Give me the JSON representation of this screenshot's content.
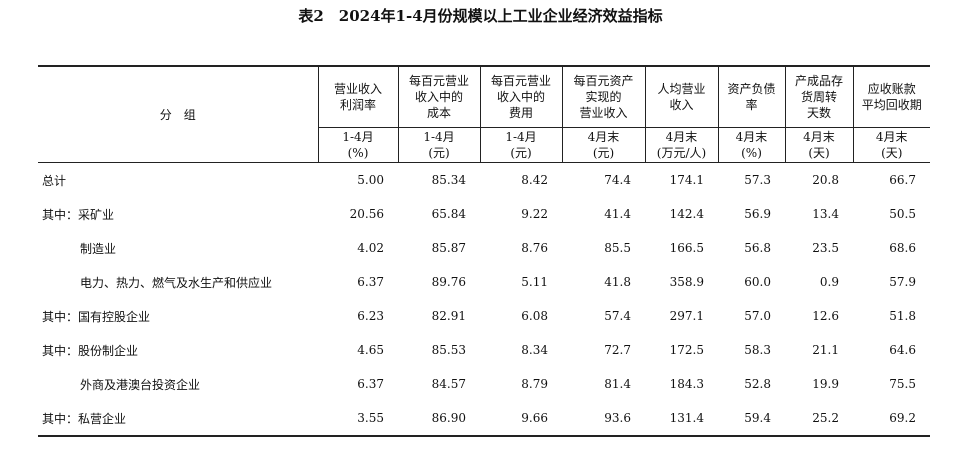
{
  "title": "表2　2024年1-4月份规模以上工业企业经济效益指标",
  "table": {
    "group_header": "分　组",
    "columns": [
      {
        "header": [
          "营业收入",
          "利润率"
        ],
        "period": "1-4月",
        "unit": "(%)"
      },
      {
        "header": [
          "每百元营业",
          "收入中的",
          "成本"
        ],
        "period": "1-4月",
        "unit": "(元)"
      },
      {
        "header": [
          "每百元营业",
          "收入中的",
          "费用"
        ],
        "period": "1-4月",
        "unit": "(元)"
      },
      {
        "header": [
          "每百元资产",
          "实现的",
          "营业收入"
        ],
        "period": "4月末",
        "unit": "(元)"
      },
      {
        "header": [
          "人均营业",
          "收入"
        ],
        "period": "4月末",
        "unit": "(万元/人)"
      },
      {
        "header": [
          "资产负债",
          "率"
        ],
        "period": "4月末",
        "unit": "(%)"
      },
      {
        "header": [
          "产成品存",
          "货周转",
          "天数"
        ],
        "period": "4月末",
        "unit": "(天)"
      },
      {
        "header": [
          "应收账款",
          "平均回收期"
        ],
        "period": "4月末",
        "unit": "(天)"
      }
    ],
    "rows": [
      {
        "label": "总计",
        "values": [
          "5.00",
          "85.34",
          "8.42",
          "74.4",
          "174.1",
          "57.3",
          "20.8",
          "66.7"
        ]
      },
      {
        "label": "其中：采矿业",
        "values": [
          "20.56",
          "65.84",
          "9.22",
          "41.4",
          "142.4",
          "56.9",
          "13.4",
          "50.5"
        ]
      },
      {
        "label": "制造业",
        "values": [
          "4.02",
          "85.87",
          "8.76",
          "85.5",
          "166.5",
          "56.8",
          "23.5",
          "68.6"
        ]
      },
      {
        "label": "电力、热力、燃气及水生产和供应业",
        "values": [
          "6.37",
          "89.76",
          "5.11",
          "41.8",
          "358.9",
          "60.0",
          "0.9",
          "57.9"
        ]
      },
      {
        "label": "其中：国有控股企业",
        "values": [
          "6.23",
          "82.91",
          "6.08",
          "57.4",
          "297.1",
          "57.0",
          "12.6",
          "51.8"
        ]
      },
      {
        "label": "其中：股份制企业",
        "values": [
          "4.65",
          "85.53",
          "8.34",
          "72.7",
          "172.5",
          "58.3",
          "21.1",
          "64.6"
        ]
      },
      {
        "label": "外商及港澳台投资企业",
        "values": [
          "6.37",
          "84.57",
          "8.79",
          "81.4",
          "184.3",
          "52.8",
          "19.9",
          "75.5"
        ]
      },
      {
        "label": "其中：私营企业",
        "values": [
          "3.55",
          "86.90",
          "9.66",
          "93.6",
          "131.4",
          "59.4",
          "25.2",
          "69.2"
        ]
      }
    ]
  }
}
